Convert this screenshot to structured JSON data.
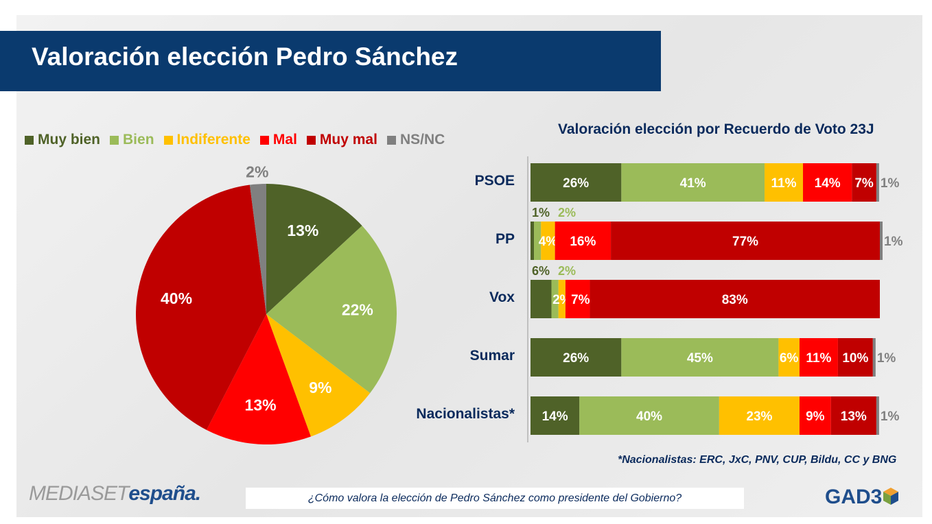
{
  "title": "Valoración elección Pedro Sánchez",
  "colors": {
    "Muy bien": "#4f6228",
    "Bien": "#9bbb59",
    "Indiferente": "#ffc000",
    "Mal": "#ff0000",
    "Muy mal": "#c00000",
    "NS/NC": "#808080"
  },
  "chart_data": [
    {
      "type": "pie",
      "categories": [
        "Muy bien",
        "Bien",
        "Indiferente",
        "Mal",
        "Muy mal",
        "NS/NC"
      ],
      "values": [
        13,
        22,
        9,
        13,
        40,
        2
      ],
      "labels": [
        "13%",
        "22%",
        "9%",
        "13%",
        "40%",
        "2%"
      ],
      "legend_placement": "top"
    },
    {
      "type": "bar",
      "orientation": "horizontal-stacked",
      "title": "Valoración elección por Recuerdo de Voto 23J",
      "categories": [
        "PSOE",
        "PP",
        "Vox",
        "Sumar",
        "Nacionalistas*"
      ],
      "series": [
        {
          "name": "Muy bien",
          "values": [
            26,
            1,
            6,
            26,
            14
          ]
        },
        {
          "name": "Bien",
          "values": [
            41,
            2,
            2,
            45,
            40
          ]
        },
        {
          "name": "Indiferente",
          "values": [
            11,
            4,
            2,
            6,
            23
          ]
        },
        {
          "name": "Mal",
          "values": [
            14,
            16,
            7,
            11,
            9
          ]
        },
        {
          "name": "Muy mal",
          "values": [
            7,
            77,
            83,
            10,
            13
          ]
        },
        {
          "name": "NS/NC",
          "values": [
            1,
            1,
            null,
            1,
            1
          ]
        }
      ],
      "xlim": [
        0,
        100
      ]
    }
  ],
  "footnote": "*Nacionalistas: ERC, JxC, PNV, CUP, Bildu, CC y BNG",
  "question": "¿Cómo valora la elección de Pedro Sánchez como presidente del Gobierno?",
  "logos": {
    "mediaset_a": "MEDIASET",
    "mediaset_b": "españa.",
    "gad3": "GAD3"
  }
}
